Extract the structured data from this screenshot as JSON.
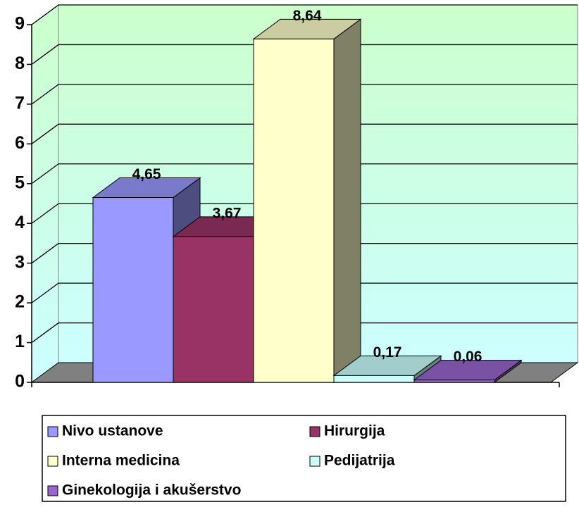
{
  "chart_data": {
    "type": "bar3d",
    "categories": [
      null
    ],
    "series": [
      {
        "name": "Nivo ustanove",
        "color": "#9999ff",
        "values": [
          4.65
        ],
        "value_labels": [
          "4,65"
        ]
      },
      {
        "name": "Hirurgija",
        "color": "#993366",
        "values": [
          3.67
        ],
        "value_labels": [
          "3,67"
        ]
      },
      {
        "name": "Interna medicina",
        "color": "#ffffcc",
        "values": [
          8.64
        ],
        "value_labels": [
          "8,64"
        ]
      },
      {
        "name": "Pedijatrija",
        "color": "#ccffff",
        "values": [
          0.17
        ],
        "value_labels": [
          "0,17"
        ]
      },
      {
        "name": "Ginekologija i akušerstvo",
        "color": "#9966cc",
        "values": [
          0.06
        ],
        "value_labels": [
          "0,06"
        ]
      }
    ],
    "ylim": [
      0,
      9
    ],
    "yticks": [
      0,
      1,
      2,
      3,
      4,
      5,
      6,
      7,
      8,
      9
    ],
    "grid": true,
    "legend": "bottom"
  }
}
